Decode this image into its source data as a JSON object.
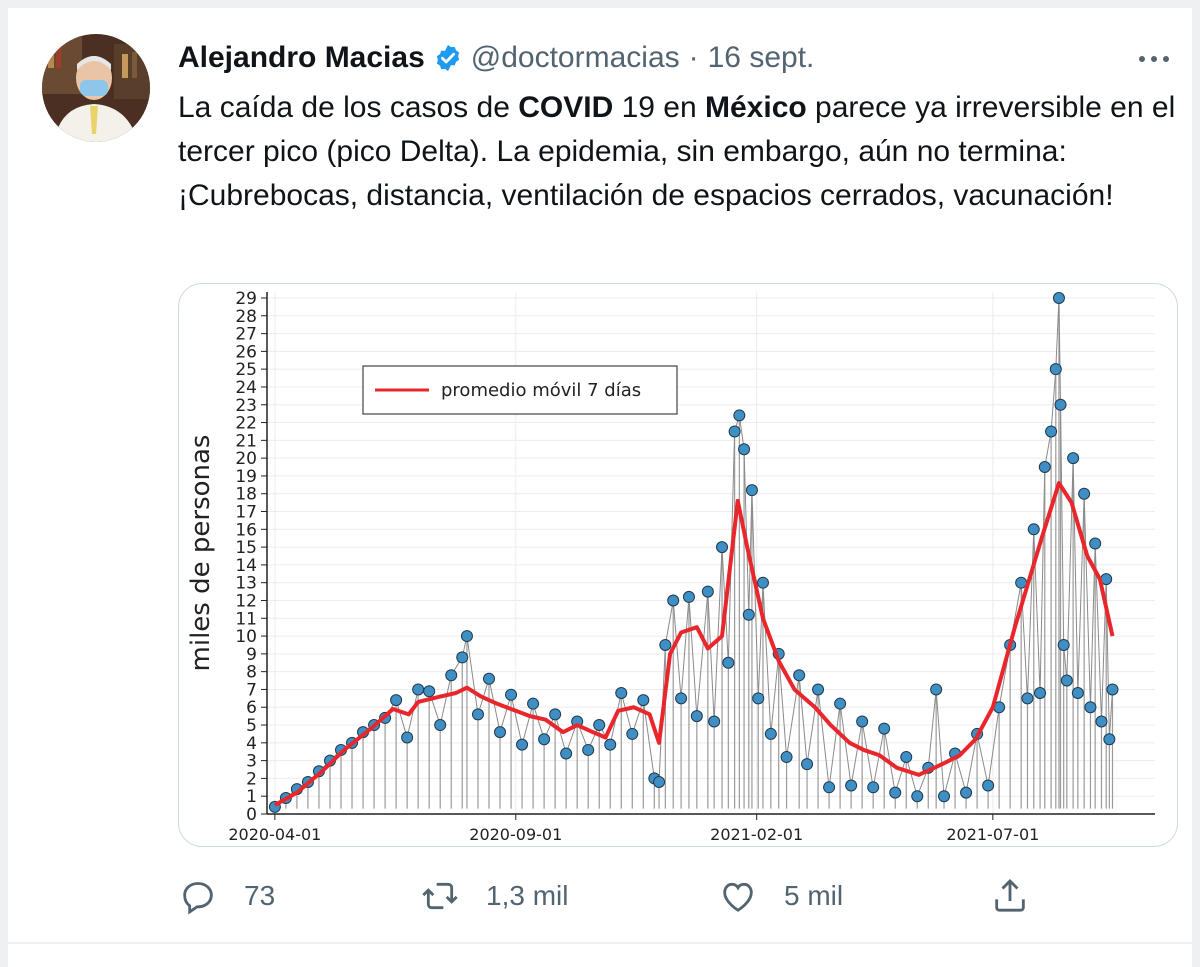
{
  "tweet": {
    "author_name": "Alejandro Macias",
    "handle": "@doctormacias",
    "separator": "·",
    "date": "16 sept.",
    "text_parts": [
      {
        "t": "La caída de los casos de ",
        "b": false
      },
      {
        "t": "COVID",
        "b": true
      },
      {
        "t": " 19 en ",
        "b": false
      },
      {
        "t": "México",
        "b": true
      },
      {
        "t": " parece ya irreversible en el tercer pico (pico Delta). La epidemia, sin embargo, aún no termina: ¡Cubrebocas, distancia, ventilación de espacios cerrados, vacunación!",
        "b": false
      }
    ]
  },
  "icons": {
    "verified": "verified-badge-icon",
    "more": "more-options-icon",
    "reply": "reply-icon",
    "retweet": "retweet-icon",
    "like": "like-icon",
    "share": "share-icon"
  },
  "actions": {
    "reply_count": "73",
    "retweet_count": "1,3 mil",
    "like_count": "5 mil"
  },
  "colors": {
    "verified": "#1d9bf0",
    "muted_text": "#536471",
    "moving_average": "#e8262b",
    "points": "#3f8fc4"
  },
  "chart_data": {
    "type": "scatter",
    "ylabel": "miles de personas",
    "legend": {
      "label": "promedio móvil 7 días",
      "position": "top-left"
    },
    "x_ticks": [
      "2020-04-01",
      "2020-09-01",
      "2021-02-01",
      "2021-07-01"
    ],
    "y_ticks": [
      "0",
      "1",
      "2",
      "3",
      "4",
      "5",
      "6",
      "7",
      "8",
      "9",
      "10",
      "11",
      "12",
      "13",
      "14",
      "15",
      "16",
      "17",
      "18",
      "19",
      "20",
      "21",
      "22",
      "23",
      "24",
      "25",
      "26",
      "27",
      "28",
      "29"
    ],
    "ylim": [
      0,
      29
    ],
    "xlim": [
      "2020-03-27",
      "2021-10-12"
    ],
    "grid": true,
    "series": [
      {
        "name": "promedio móvil 7 días",
        "type": "line",
        "color": "#e8262b",
        "points": [
          [
            "2020-04-01",
            0.5
          ],
          [
            "2020-04-15",
            1.2
          ],
          [
            "2020-05-01",
            2.4
          ],
          [
            "2020-05-15",
            3.6
          ],
          [
            "2020-06-01",
            4.8
          ],
          [
            "2020-06-15",
            5.9
          ],
          [
            "2020-06-25",
            5.6
          ],
          [
            "2020-07-01",
            6.3
          ],
          [
            "2020-07-15",
            6.6
          ],
          [
            "2020-07-25",
            6.8
          ],
          [
            "2020-08-01",
            7.1
          ],
          [
            "2020-08-10",
            6.6
          ],
          [
            "2020-08-20",
            6.2
          ],
          [
            "2020-09-01",
            5.8
          ],
          [
            "2020-09-10",
            5.5
          ],
          [
            "2020-09-20",
            5.3
          ],
          [
            "2020-10-01",
            4.6
          ],
          [
            "2020-10-10",
            5.0
          ],
          [
            "2020-10-20",
            4.6
          ],
          [
            "2020-10-28",
            4.3
          ],
          [
            "2020-11-05",
            5.8
          ],
          [
            "2020-11-15",
            6.0
          ],
          [
            "2020-11-25",
            5.6
          ],
          [
            "2020-12-01",
            4.0
          ],
          [
            "2020-12-08",
            9.0
          ],
          [
            "2020-12-15",
            10.2
          ],
          [
            "2020-12-25",
            10.5
          ],
          [
            "2021-01-01",
            9.3
          ],
          [
            "2021-01-10",
            10.0
          ],
          [
            "2021-01-20",
            17.6
          ],
          [
            "2021-01-26",
            15.0
          ],
          [
            "2021-02-05",
            11.0
          ],
          [
            "2021-02-15",
            8.6
          ],
          [
            "2021-02-25",
            7.0
          ],
          [
            "2021-03-10",
            6.0
          ],
          [
            "2021-03-20",
            5.0
          ],
          [
            "2021-04-01",
            4.0
          ],
          [
            "2021-04-10",
            3.6
          ],
          [
            "2021-04-20",
            3.3
          ],
          [
            "2021-05-01",
            2.6
          ],
          [
            "2021-05-15",
            2.2
          ],
          [
            "2021-05-25",
            2.6
          ],
          [
            "2021-06-01",
            2.9
          ],
          [
            "2021-06-10",
            3.3
          ],
          [
            "2021-06-20",
            4.2
          ],
          [
            "2021-07-01",
            6.0
          ],
          [
            "2021-07-15",
            10.5
          ],
          [
            "2021-08-01",
            15.5
          ],
          [
            "2021-08-12",
            18.6
          ],
          [
            "2021-08-20",
            17.5
          ],
          [
            "2021-08-30",
            14.5
          ],
          [
            "2021-09-07",
            13.2
          ],
          [
            "2021-09-15",
            10.0
          ]
        ]
      },
      {
        "name": "",
        "type": "points",
        "color": "#3f8fc4",
        "points": [
          [
            "2020-04-01",
            0.4
          ],
          [
            "2020-04-08",
            0.9
          ],
          [
            "2020-04-15",
            1.4
          ],
          [
            "2020-04-22",
            1.8
          ],
          [
            "2020-04-29",
            2.4
          ],
          [
            "2020-05-06",
            3.0
          ],
          [
            "2020-05-13",
            3.6
          ],
          [
            "2020-05-20",
            4.0
          ],
          [
            "2020-05-27",
            4.6
          ],
          [
            "2020-06-03",
            5.0
          ],
          [
            "2020-06-10",
            5.4
          ],
          [
            "2020-06-17",
            6.4
          ],
          [
            "2020-06-24",
            4.3
          ],
          [
            "2020-07-01",
            7.0
          ],
          [
            "2020-07-08",
            6.9
          ],
          [
            "2020-07-15",
            5.0
          ],
          [
            "2020-07-22",
            7.8
          ],
          [
            "2020-07-29",
            8.8
          ],
          [
            "2020-08-01",
            10.0
          ],
          [
            "2020-08-08",
            5.6
          ],
          [
            "2020-08-15",
            7.6
          ],
          [
            "2020-08-22",
            4.6
          ],
          [
            "2020-08-29",
            6.7
          ],
          [
            "2020-09-05",
            3.9
          ],
          [
            "2020-09-12",
            6.2
          ],
          [
            "2020-09-19",
            4.2
          ],
          [
            "2020-09-26",
            5.6
          ],
          [
            "2020-10-03",
            3.4
          ],
          [
            "2020-10-10",
            5.2
          ],
          [
            "2020-10-17",
            3.6
          ],
          [
            "2020-10-24",
            5.0
          ],
          [
            "2020-10-31",
            3.9
          ],
          [
            "2020-11-07",
            6.8
          ],
          [
            "2020-11-14",
            4.5
          ],
          [
            "2020-11-21",
            6.4
          ],
          [
            "2020-11-28",
            2.0
          ],
          [
            "2020-12-01",
            1.8
          ],
          [
            "2020-12-05",
            9.5
          ],
          [
            "2020-12-10",
            12.0
          ],
          [
            "2020-12-15",
            6.5
          ],
          [
            "2020-12-20",
            12.2
          ],
          [
            "2020-12-25",
            5.5
          ],
          [
            "2021-01-01",
            12.5
          ],
          [
            "2021-01-05",
            5.2
          ],
          [
            "2021-01-10",
            15.0
          ],
          [
            "2021-01-14",
            8.5
          ],
          [
            "2021-01-18",
            21.5
          ],
          [
            "2021-01-21",
            22.4
          ],
          [
            "2021-01-24",
            20.5
          ],
          [
            "2021-01-27",
            11.2
          ],
          [
            "2021-01-29",
            18.2
          ],
          [
            "2021-02-02",
            6.5
          ],
          [
            "2021-02-05",
            13.0
          ],
          [
            "2021-02-10",
            4.5
          ],
          [
            "2021-02-15",
            9.0
          ],
          [
            "2021-02-20",
            3.2
          ],
          [
            "2021-02-28",
            7.8
          ],
          [
            "2021-03-05",
            2.8
          ],
          [
            "2021-03-12",
            7.0
          ],
          [
            "2021-03-19",
            1.5
          ],
          [
            "2021-03-26",
            6.2
          ],
          [
            "2021-04-02",
            1.6
          ],
          [
            "2021-04-09",
            5.2
          ],
          [
            "2021-04-16",
            1.5
          ],
          [
            "2021-04-23",
            4.8
          ],
          [
            "2021-04-30",
            1.2
          ],
          [
            "2021-05-07",
            3.2
          ],
          [
            "2021-05-14",
            1.0
          ],
          [
            "2021-05-21",
            2.6
          ],
          [
            "2021-05-26",
            7.0
          ],
          [
            "2021-05-31",
            1.0
          ],
          [
            "2021-06-07",
            3.4
          ],
          [
            "2021-06-14",
            1.2
          ],
          [
            "2021-06-21",
            4.5
          ],
          [
            "2021-06-28",
            1.6
          ],
          [
            "2021-07-05",
            6.0
          ],
          [
            "2021-07-12",
            9.5
          ],
          [
            "2021-07-19",
            13.0
          ],
          [
            "2021-07-23",
            6.5
          ],
          [
            "2021-07-27",
            16.0
          ],
          [
            "2021-07-31",
            6.8
          ],
          [
            "2021-08-03",
            19.5
          ],
          [
            "2021-08-07",
            21.5
          ],
          [
            "2021-08-10",
            25.0
          ],
          [
            "2021-08-12",
            29.0
          ],
          [
            "2021-08-13",
            23.0
          ],
          [
            "2021-08-15",
            9.5
          ],
          [
            "2021-08-17",
            7.5
          ],
          [
            "2021-08-21",
            20.0
          ],
          [
            "2021-08-24",
            6.8
          ],
          [
            "2021-08-28",
            18.0
          ],
          [
            "2021-09-01",
            6.0
          ],
          [
            "2021-09-04",
            15.2
          ],
          [
            "2021-09-08",
            5.2
          ],
          [
            "2021-09-11",
            13.2
          ],
          [
            "2021-09-13",
            4.2
          ],
          [
            "2021-09-15",
            7.0
          ]
        ]
      }
    ]
  }
}
